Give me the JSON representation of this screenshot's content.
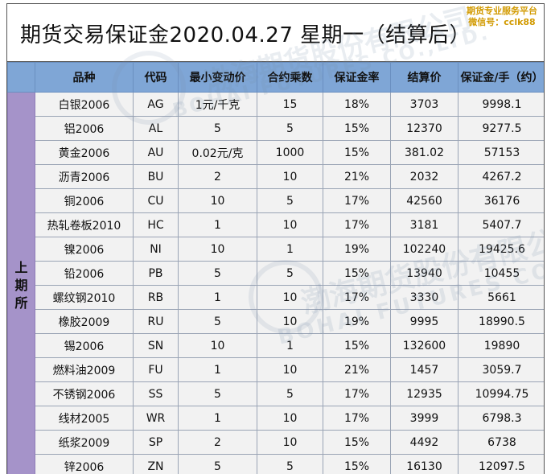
{
  "title": "期货交易保证金2020.04.27 星期一（结算后）",
  "promo": {
    "line1": "期货专业服务平台",
    "line2": "微信号：cclk88"
  },
  "watermark": {
    "cn": "渤海期货股份有限公司",
    "en": "BOHAI FUTURES CO.,LTD."
  },
  "colors": {
    "header_bg": "#7fa6d6",
    "exchange_bg": "#a593c9",
    "row_bg": "#f2f2f2",
    "promo_text": "#d29a00"
  },
  "table": {
    "headers": [
      "品种",
      "代码",
      "最小变动价",
      "合约乘数",
      "保证金率",
      "结算价",
      "保证金/手（约）"
    ],
    "exchange": [
      "上",
      "期",
      "所"
    ],
    "rows": [
      [
        "白银2006",
        "AG",
        "1元/千克",
        "15",
        "18%",
        "3703",
        "9998.1"
      ],
      [
        "铝2006",
        "AL",
        "5",
        "5",
        "15%",
        "12370",
        "9277.5"
      ],
      [
        "黄金2006",
        "AU",
        "0.02元/克",
        "1000",
        "15%",
        "381.02",
        "57153"
      ],
      [
        "沥青2006",
        "BU",
        "2",
        "10",
        "21%",
        "2032",
        "4267.2"
      ],
      [
        "铜2006",
        "CU",
        "10",
        "5",
        "17%",
        "42560",
        "36176"
      ],
      [
        "热轧卷板2010",
        "HC",
        "1",
        "10",
        "17%",
        "3181",
        "5407.7"
      ],
      [
        "镍2006",
        "NI",
        "10",
        "1",
        "19%",
        "102240",
        "19425.6"
      ],
      [
        "铅2006",
        "PB",
        "5",
        "5",
        "15%",
        "13940",
        "10455"
      ],
      [
        "螺纹钢2010",
        "RB",
        "1",
        "10",
        "17%",
        "3330",
        "5661"
      ],
      [
        "橡胶2009",
        "RU",
        "5",
        "10",
        "19%",
        "9995",
        "18990.5"
      ],
      [
        "锡2006",
        "SN",
        "10",
        "1",
        "15%",
        "132600",
        "19890"
      ],
      [
        "燃料油2009",
        "FU",
        "1",
        "10",
        "21%",
        "1457",
        "3059.7"
      ],
      [
        "不锈钢2006",
        "SS",
        "5",
        "5",
        "17%",
        "12935",
        "10994.75"
      ],
      [
        "线材2005",
        "WR",
        "1",
        "10",
        "17%",
        "3999",
        "6798.3"
      ],
      [
        "纸浆2009",
        "SP",
        "2",
        "10",
        "15%",
        "4492",
        "6738"
      ],
      [
        "锌2006",
        "ZN",
        "5",
        "5",
        "15%",
        "16130",
        "12097.5"
      ]
    ]
  }
}
